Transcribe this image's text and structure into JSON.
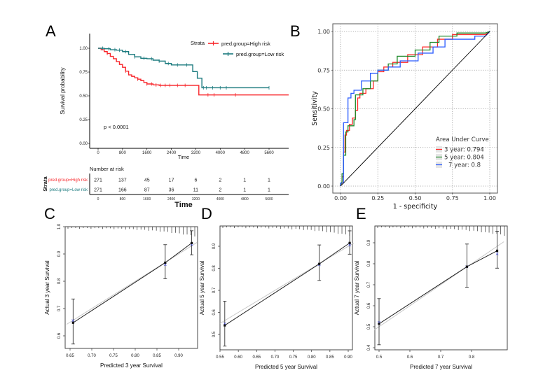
{
  "panels": {
    "A": "A",
    "B": "B",
    "C": "C",
    "D": "D",
    "E": "E"
  },
  "chart_data": [
    {
      "id": "A",
      "type": "line",
      "title": "",
      "xlabel": "Time",
      "ylabel": "Survival probability",
      "xlim": [
        -300,
        6400
      ],
      "ylim": [
        0,
        1
      ],
      "xticks": [
        0,
        800,
        1600,
        2400,
        3200,
        4000,
        4800,
        5600
      ],
      "xtick_labels": [
        "0",
        "800",
        "1600",
        "2400",
        "3200",
        "4000",
        "4800",
        "5600"
      ],
      "yticks": [
        0,
        0.25,
        0.5,
        0.75,
        1.0
      ],
      "ytick_labels": [
        "0.00",
        "0.25",
        "0.50",
        "0.75",
        "1.00"
      ],
      "annotation": "p < 0.0001",
      "legend": {
        "title": "Strata",
        "placement": "top-right"
      },
      "series": [
        {
          "name": "pred.group=High risk",
          "color": "#f8262b",
          "x": [
            0,
            100,
            200,
            300,
            400,
            500,
            600,
            700,
            800,
            900,
            1000,
            1100,
            1200,
            1300,
            1400,
            1500,
            1600,
            1800,
            2000,
            3300,
            3300,
            6400
          ],
          "y": [
            1.0,
            0.985,
            0.965,
            0.945,
            0.915,
            0.89,
            0.86,
            0.83,
            0.8,
            0.76,
            0.72,
            0.705,
            0.69,
            0.675,
            0.66,
            0.64,
            0.625,
            0.615,
            0.61,
            0.61,
            0.51,
            0.51
          ]
        },
        {
          "name": "pred.group=Low risk",
          "color": "#1b7a7e",
          "x": [
            0,
            200,
            400,
            600,
            800,
            1000,
            1200,
            1400,
            1600,
            1800,
            2000,
            2200,
            2400,
            3100,
            3100,
            3250,
            3250,
            3400,
            3400,
            5600
          ],
          "y": [
            1.0,
            0.995,
            0.985,
            0.98,
            0.965,
            0.935,
            0.91,
            0.895,
            0.89,
            0.875,
            0.865,
            0.84,
            0.825,
            0.825,
            0.755,
            0.755,
            0.685,
            0.685,
            0.585,
            0.585
          ]
        }
      ],
      "risk_table": {
        "title": "Number at risk",
        "ylabel": "Strata",
        "xlabel": "Time",
        "rows": [
          {
            "label": "pred.group=High risk",
            "color": "#f8262b",
            "values": [
              271,
              137,
              45,
              17,
              6,
              2,
              1,
              1
            ]
          },
          {
            "label": "pred.group=Low risk",
            "color": "#1b7a7e",
            "values": [
              271,
              166,
              87,
              36,
              11,
              2,
              1,
              1
            ]
          }
        ]
      }
    },
    {
      "id": "B",
      "type": "line",
      "title": "",
      "xlabel": "1 - specificity",
      "ylabel": "Sensitivity",
      "xlim": [
        0,
        1
      ],
      "ylim": [
        0,
        1
      ],
      "xticks": [
        0,
        0.25,
        0.5,
        0.75,
        1.0
      ],
      "xtick_labels": [
        "0.00",
        "0.25",
        "0.50",
        "0.75",
        "1.00"
      ],
      "yticks": [
        0,
        0.25,
        0.5,
        0.75,
        1.0
      ],
      "ytick_labels": [
        "0.00",
        "0.25",
        "0.50",
        "0.75",
        "1.00"
      ],
      "grid": true,
      "legend": {
        "title": "Area Under Curve",
        "placement": "bottom-right"
      },
      "series": [
        {
          "name": "3 year: 0.794",
          "color": "#ff2a2a",
          "x": [
            0,
            0.01,
            0.01,
            0.02,
            0.02,
            0.03,
            0.03,
            0.04,
            0.04,
            0.06,
            0.06,
            0.08,
            0.08,
            0.1,
            0.1,
            0.115,
            0.115,
            0.13,
            0.13,
            0.17,
            0.17,
            0.22,
            0.22,
            0.25,
            0.25,
            0.29,
            0.29,
            0.35,
            0.35,
            0.45,
            0.45,
            0.55,
            0.55,
            0.65,
            0.65,
            0.75,
            0.75,
            0.97,
            1.0
          ],
          "y": [
            0,
            0.02,
            0.06,
            0.06,
            0.22,
            0.22,
            0.33,
            0.33,
            0.36,
            0.36,
            0.4,
            0.4,
            0.44,
            0.44,
            0.49,
            0.49,
            0.57,
            0.57,
            0.6,
            0.6,
            0.63,
            0.63,
            0.68,
            0.68,
            0.74,
            0.74,
            0.77,
            0.77,
            0.8,
            0.8,
            0.85,
            0.85,
            0.9,
            0.9,
            0.95,
            0.95,
            0.98,
            0.98,
            1.0
          ]
        },
        {
          "name": "5 year: 0.804",
          "color": "#1f8a2a",
          "x": [
            0,
            0.01,
            0.01,
            0.02,
            0.02,
            0.035,
            0.035,
            0.05,
            0.05,
            0.09,
            0.09,
            0.1,
            0.1,
            0.15,
            0.15,
            0.2,
            0.2,
            0.25,
            0.25,
            0.32,
            0.32,
            0.38,
            0.38,
            0.5,
            0.5,
            0.6,
            0.6,
            0.66,
            0.66,
            0.78,
            0.78,
            0.97,
            1.0
          ],
          "y": [
            0,
            0.03,
            0.08,
            0.08,
            0.2,
            0.2,
            0.35,
            0.35,
            0.39,
            0.39,
            0.43,
            0.43,
            0.59,
            0.59,
            0.63,
            0.63,
            0.68,
            0.68,
            0.75,
            0.75,
            0.79,
            0.79,
            0.84,
            0.84,
            0.88,
            0.88,
            0.93,
            0.93,
            0.97,
            0.97,
            0.99,
            0.99,
            1.0
          ]
        },
        {
          "name": "7 year: 0.8",
          "color": "#2a5cff",
          "x": [
            0,
            0.0,
            0.02,
            0.02,
            0.05,
            0.05,
            0.07,
            0.07,
            0.09,
            0.09,
            0.14,
            0.14,
            0.2,
            0.2,
            0.25,
            0.25,
            0.32,
            0.32,
            0.4,
            0.4,
            0.52,
            0.52,
            0.62,
            0.62,
            0.7,
            0.7,
            0.9,
            0.9,
            0.97,
            1.0
          ],
          "y": [
            0,
            0.02,
            0.02,
            0.41,
            0.41,
            0.57,
            0.57,
            0.6,
            0.6,
            0.62,
            0.62,
            0.68,
            0.68,
            0.73,
            0.73,
            0.75,
            0.75,
            0.77,
            0.77,
            0.81,
            0.81,
            0.86,
            0.86,
            0.9,
            0.9,
            0.95,
            0.95,
            0.97,
            0.97,
            1.0
          ]
        },
        {
          "name": "reference",
          "color": "#000000",
          "x": [
            0,
            1
          ],
          "y": [
            0,
            1
          ]
        }
      ]
    },
    {
      "id": "C",
      "type": "scatter",
      "xlabel": "Predicted 3 year Survival",
      "ylabel": "Actual 3 year Survival",
      "xlim": [
        0.642,
        0.943
      ],
      "ylim": [
        0.555,
        1.0
      ],
      "xticks": [
        0.65,
        0.7,
        0.75,
        0.8,
        0.85,
        0.9
      ],
      "xtick_labels": [
        "0.65",
        "0.70",
        "0.75",
        "0.80",
        "0.85",
        "0.90"
      ],
      "yticks": [
        0.6,
        0.7,
        0.8,
        0.9,
        1.0
      ],
      "ytick_labels": [
        "0.6",
        "0.7",
        "0.8",
        "0.9",
        "1.0"
      ],
      "points": [
        {
          "x": 0.657,
          "observed": 0.648,
          "lower": 0.57,
          "upper": 0.735,
          "corrected": 0.656
        },
        {
          "x": 0.869,
          "observed": 0.868,
          "lower": 0.809,
          "upper": 0.934,
          "corrected": 0.862
        },
        {
          "x": 0.93,
          "observed": 0.94,
          "lower": 0.897,
          "upper": 0.985,
          "corrected": 0.934
        }
      ]
    },
    {
      "id": "D",
      "type": "scatter",
      "xlabel": "Predicted 5 year Survival",
      "ylabel": "Actual 5 year Survival",
      "xlim": [
        0.55,
        0.915
      ],
      "ylim": [
        0.43,
        0.99
      ],
      "xticks": [
        0.55,
        0.6,
        0.65,
        0.7,
        0.75,
        0.8,
        0.85,
        0.9
      ],
      "xtick_labels": [
        "0.55",
        "0.60",
        "0.65",
        "0.70",
        "0.75",
        "0.80",
        "0.85",
        "0.90"
      ],
      "yticks": [
        0.5,
        0.6,
        0.7,
        0.8,
        0.9
      ],
      "ytick_labels": [
        "0.5",
        "0.6",
        "0.7",
        "0.8",
        "0.9"
      ],
      "points": [
        {
          "x": 0.563,
          "observed": 0.541,
          "lower": 0.447,
          "upper": 0.651,
          "corrected": 0.55
        },
        {
          "x": 0.821,
          "observed": 0.82,
          "lower": 0.745,
          "upper": 0.906,
          "corrected": 0.817
        },
        {
          "x": 0.904,
          "observed": 0.915,
          "lower": 0.864,
          "upper": 0.97,
          "corrected": 0.906
        }
      ]
    },
    {
      "id": "E",
      "type": "scatter",
      "xlabel": "Predicted 7 year Survival",
      "ylabel": "Actual 7 year Survival",
      "xlim": [
        0.485,
        0.905
      ],
      "ylim": [
        0.395,
        0.985
      ],
      "xticks": [
        0.5,
        0.6,
        0.7,
        0.8
      ],
      "xtick_labels": [
        "0.5",
        "0.6",
        "0.7",
        "0.8"
      ],
      "yticks": [
        0.4,
        0.5,
        0.6,
        0.7,
        0.8,
        0.9
      ],
      "ytick_labels": [
        "0.4",
        "0.5",
        "0.6",
        "0.7",
        "0.8",
        "0.9"
      ],
      "points": [
        {
          "x": 0.5,
          "observed": 0.514,
          "lower": 0.414,
          "upper": 0.634,
          "corrected": 0.521
        },
        {
          "x": 0.785,
          "observed": 0.786,
          "lower": 0.688,
          "upper": 0.894,
          "corrected": 0.786
        },
        {
          "x": 0.883,
          "observed": 0.862,
          "lower": 0.779,
          "upper": 0.955,
          "corrected": 0.849
        }
      ]
    }
  ]
}
